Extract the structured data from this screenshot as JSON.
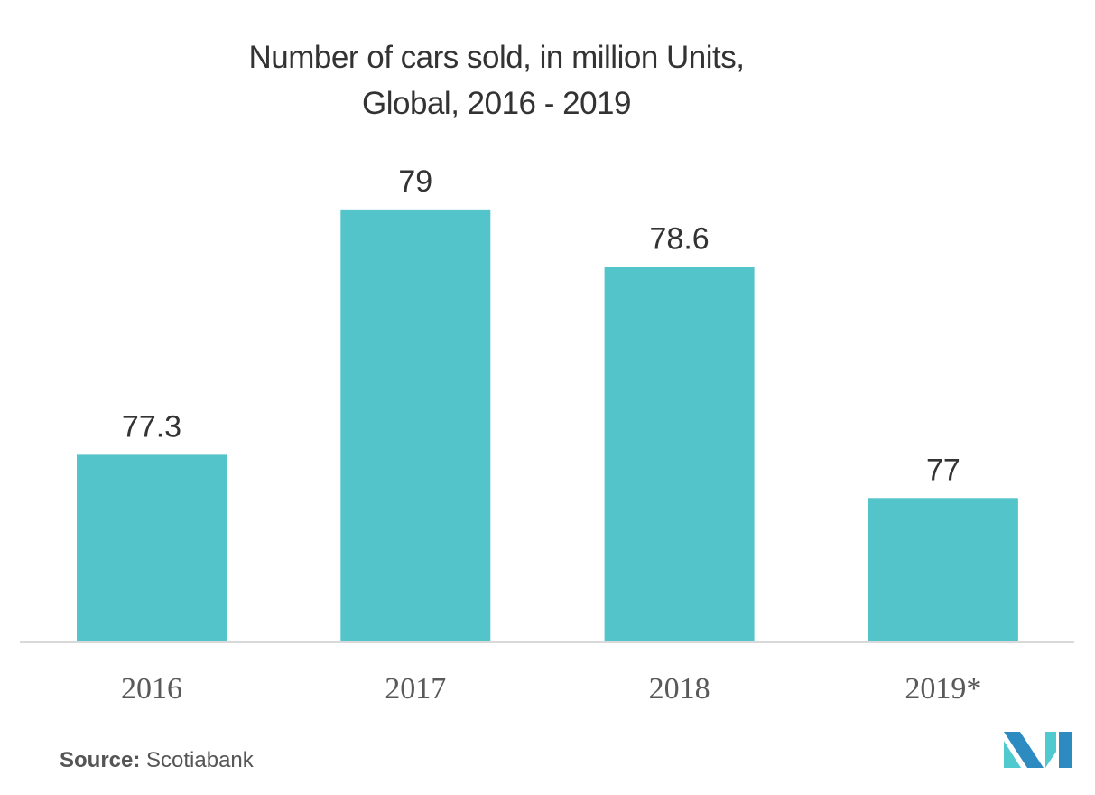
{
  "chart_data": {
    "type": "bar",
    "title": "Number of cars sold, in million Units, Global, 2016 - 2019",
    "title_lines": [
      "Number of cars sold, in million Units,",
      "Global, 2016 - 2019"
    ],
    "categories": [
      "2016",
      "2017",
      "2018",
      "2019*"
    ],
    "values": [
      77.3,
      79,
      78.6,
      77
    ],
    "data_labels": [
      "77.3",
      "79",
      "78.6",
      "77"
    ],
    "xlabel": "",
    "ylabel": "",
    "ylim": [
      76,
      79.5
    ],
    "grid": false,
    "legend": "none",
    "bar_color": "#53c4ca",
    "axis_color": "#d9d9d9"
  },
  "source": {
    "label": "Source:",
    "text": "Scotiabank"
  },
  "logo": {
    "name": "mordor-intelligence-logo",
    "colors": [
      "#2d8bc2",
      "#50c9cf"
    ]
  }
}
